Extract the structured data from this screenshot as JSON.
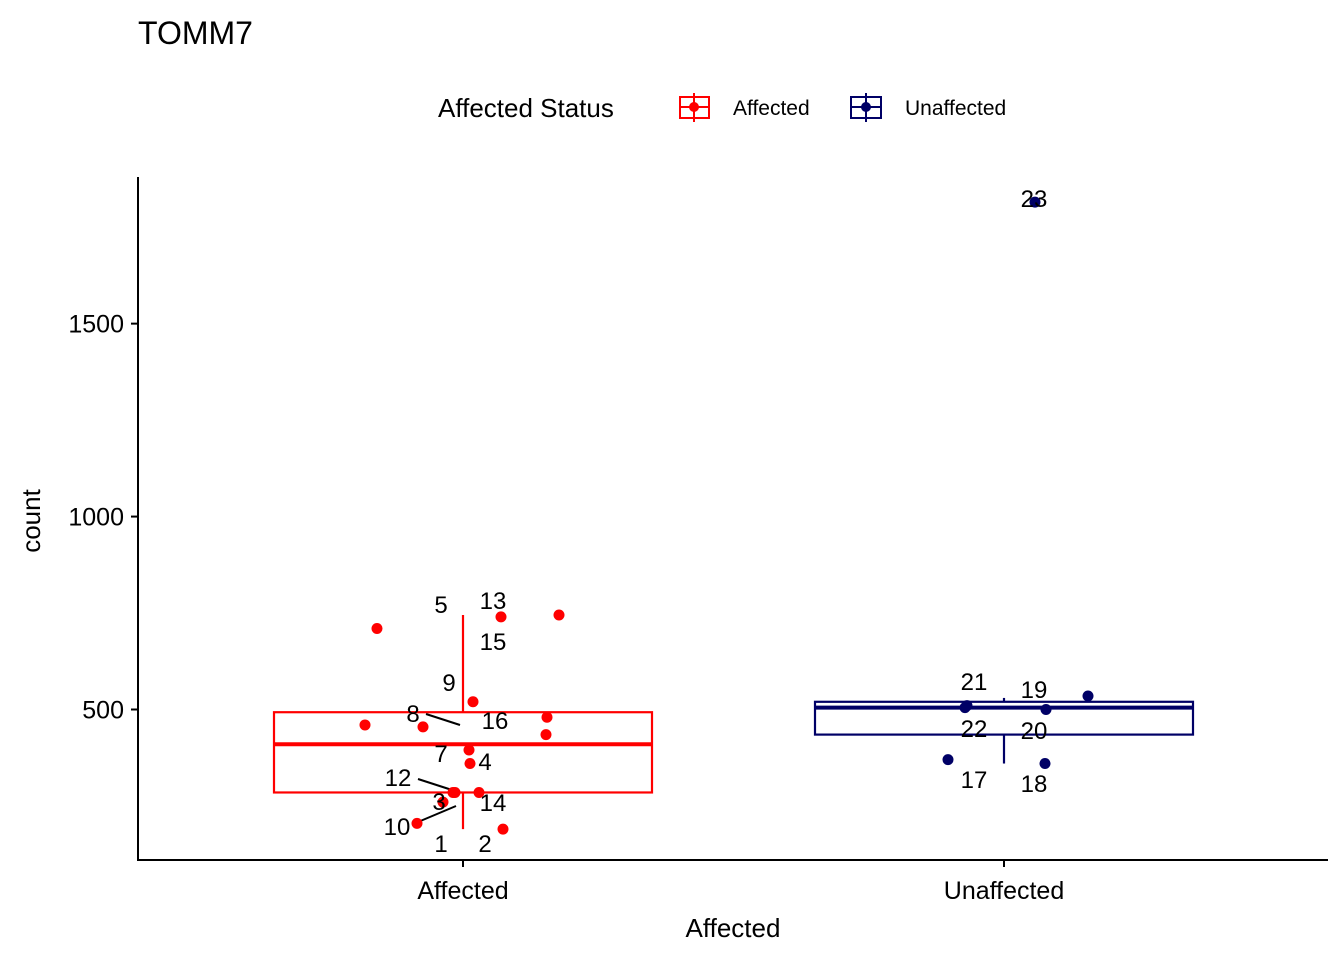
{
  "chart_data": {
    "type": "box",
    "title": "TOMM7",
    "xlabel": "Affected",
    "ylabel": "count",
    "ylim": [
      110,
      1880
    ],
    "yticks": [
      500,
      1000,
      1500
    ],
    "categories": [
      "Affected",
      "Unaffected"
    ],
    "grid": false,
    "legend": {
      "title": "Affected Status",
      "position": "top",
      "entries": [
        {
          "label": "Affected",
          "color": "#ff0000"
        },
        {
          "label": "Unaffected",
          "color": "#000066"
        }
      ]
    },
    "series": [
      {
        "name": "Affected",
        "color": "#ff0000",
        "box": {
          "q1": 285,
          "median": 410,
          "q3": 493,
          "whisker_low": 190,
          "whisker_high": 745
        },
        "points": [
          {
            "label": "1",
            "value": 285
          },
          {
            "label": "2",
            "value": 190
          },
          {
            "label": "3",
            "value": 260
          },
          {
            "label": "4",
            "value": 360
          },
          {
            "label": "5",
            "value": 710
          },
          {
            "label": "7",
            "value": 395
          },
          {
            "label": "8",
            "value": 455
          },
          {
            "label": "9",
            "value": 520
          },
          {
            "label": "10",
            "value": 205
          },
          {
            "label": "12",
            "value": 285
          },
          {
            "label": "13",
            "value": 740
          },
          {
            "label": "14",
            "value": 285
          },
          {
            "label": "15",
            "value": 745
          },
          {
            "label": "16",
            "value": 480
          },
          {
            "label": "",
            "value": 460
          },
          {
            "label": "",
            "value": 435
          }
        ]
      },
      {
        "name": "Unaffected",
        "color": "#000066",
        "box": {
          "q1": 435,
          "median": 505,
          "q3": 520,
          "whisker_low": 360,
          "whisker_high": 530
        },
        "points": [
          {
            "label": "17",
            "value": 370
          },
          {
            "label": "18",
            "value": 360
          },
          {
            "label": "19",
            "value": 535
          },
          {
            "label": "20",
            "value": 500
          },
          {
            "label": "21",
            "value": 510
          },
          {
            "label": "22",
            "value": 505
          },
          {
            "label": "23",
            "value": 1815
          }
        ]
      }
    ]
  }
}
